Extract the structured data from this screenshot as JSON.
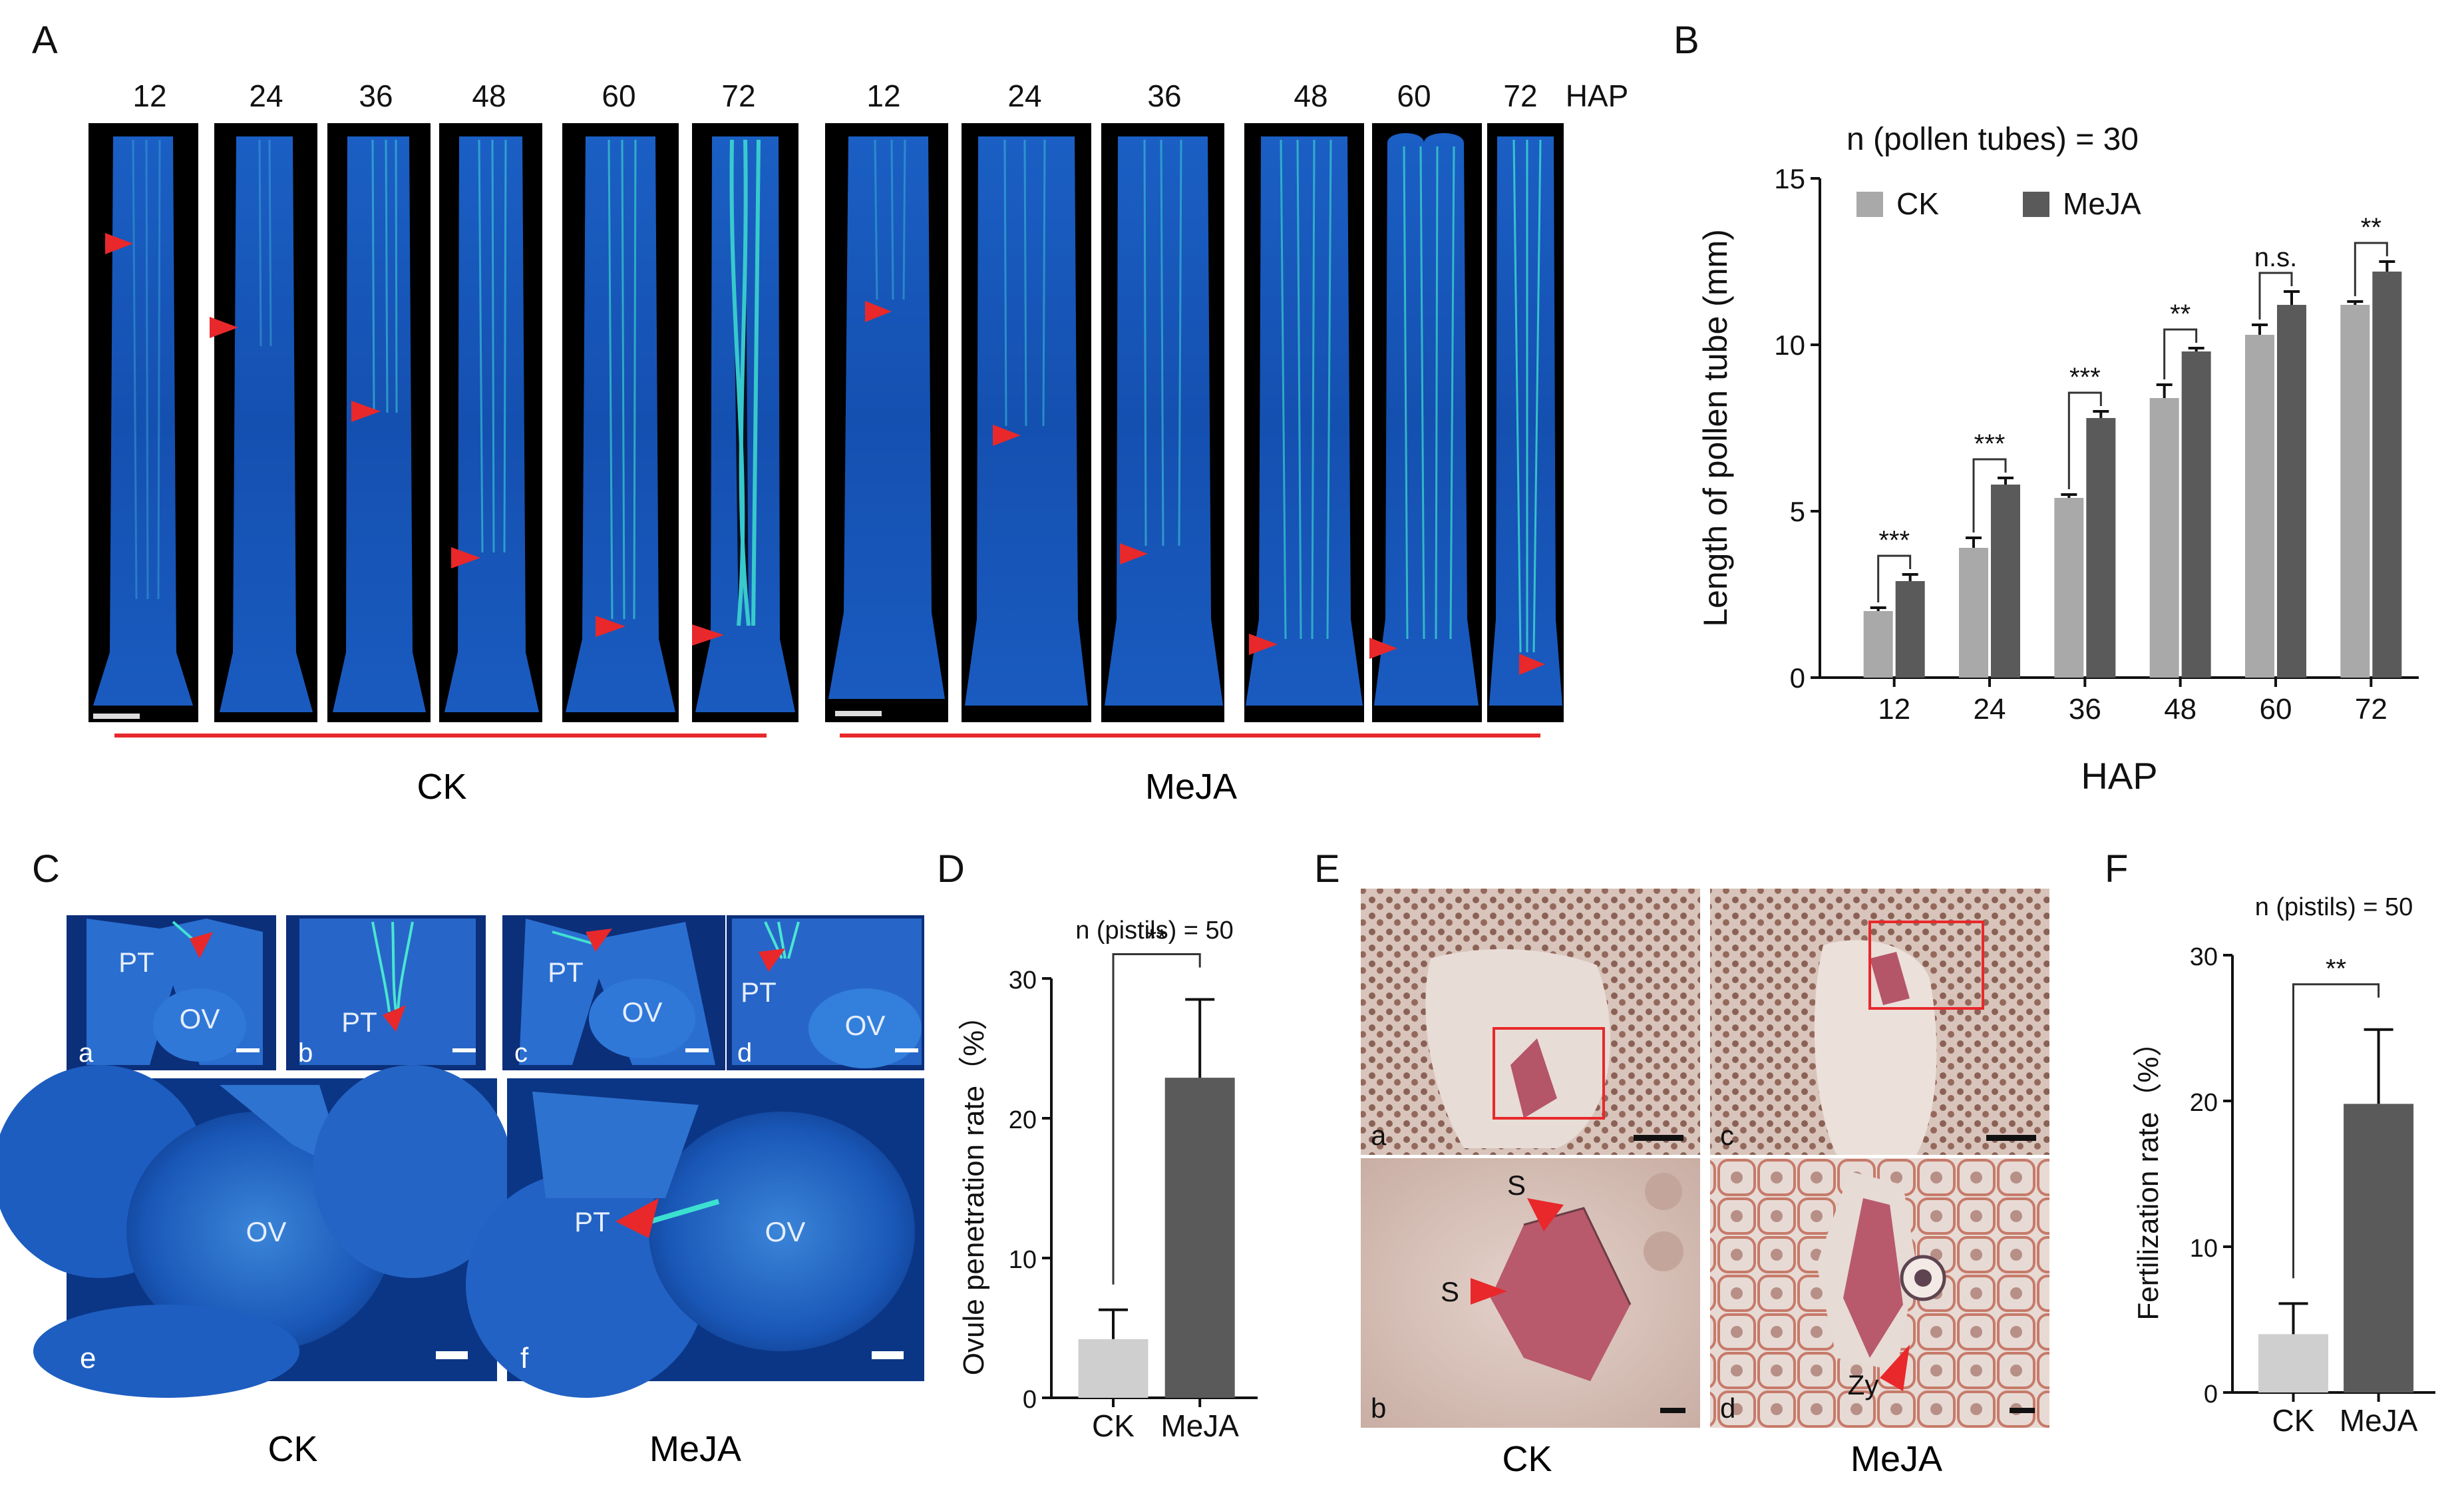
{
  "panel_letters": [
    "A",
    "B",
    "C",
    "D",
    "E",
    "F"
  ],
  "panel_a": {
    "ck_hap": [
      "12",
      "24",
      "36",
      "48",
      "60",
      "72"
    ],
    "meja_hap": [
      "12",
      "24",
      "36",
      "48",
      "60",
      "72"
    ],
    "hap_unit": "HAP",
    "group_ck": "CK",
    "group_meja": "MeJA"
  },
  "panel_c": {
    "sub_labels": [
      "a",
      "b",
      "c",
      "d",
      "e",
      "f"
    ],
    "pt": "PT",
    "ov": "OV",
    "group_ck": "CK",
    "group_meja": "MeJA"
  },
  "panel_e": {
    "sub_labels": [
      "a",
      "b",
      "c",
      "d"
    ],
    "s": "S",
    "zy": "Zy",
    "group_ck": "CK",
    "group_meja": "MeJA"
  },
  "colors": {
    "ck_bar": "#a9a9a9",
    "meja_bar": "#5a5a5a",
    "ck_bar_light": "#cfcfcf",
    "arrow": "#e8282b",
    "fluor_bg": "#0a3a8c",
    "fluor_tube": "#3ce0d0"
  },
  "chart_data": [
    {
      "panel": "B",
      "type": "bar",
      "title": "n (pollen tubes) = 30",
      "xlabel": "HAP",
      "ylabel": "Length of pollen tube (mm)",
      "categories": [
        "12",
        "24",
        "36",
        "48",
        "60",
        "72"
      ],
      "ylim": [
        0,
        15
      ],
      "yticks": [
        "0",
        "5",
        "10",
        "15"
      ],
      "legend_position": "top-left",
      "series": [
        {
          "name": "CK",
          "values": [
            2.0,
            3.9,
            5.4,
            8.4,
            10.3,
            11.2
          ],
          "errors": [
            0.1,
            0.3,
            0.1,
            0.4,
            0.3,
            0.1
          ]
        },
        {
          "name": "MeJA",
          "values": [
            2.9,
            5.8,
            7.8,
            9.8,
            11.2,
            12.2
          ],
          "errors": [
            0.2,
            0.2,
            0.2,
            0.1,
            0.4,
            0.3
          ]
        }
      ],
      "significance": [
        "***",
        "***",
        "***",
        "**",
        "n.s.",
        "**"
      ]
    },
    {
      "panel": "D",
      "type": "bar",
      "title": "n (pistils) = 50",
      "xlabel": "",
      "ylabel": "Ovule penetration rate（%）",
      "categories": [
        "CK",
        "MeJA"
      ],
      "values": [
        4.2,
        22.9
      ],
      "errors": [
        2.1,
        5.6
      ],
      "ylim": [
        0,
        30
      ],
      "yticks": [
        "0",
        "10",
        "20",
        "30"
      ],
      "significance": "**"
    },
    {
      "panel": "F",
      "type": "bar",
      "title": "n (pistils) = 50",
      "xlabel": "",
      "ylabel": "Fertilization rate（%）",
      "categories": [
        "CK",
        "MeJA"
      ],
      "values": [
        4.0,
        19.8
      ],
      "errors": [
        2.1,
        5.1
      ],
      "ylim": [
        0,
        30
      ],
      "yticks": [
        "0",
        "10",
        "20",
        "30"
      ],
      "significance": "**"
    }
  ]
}
